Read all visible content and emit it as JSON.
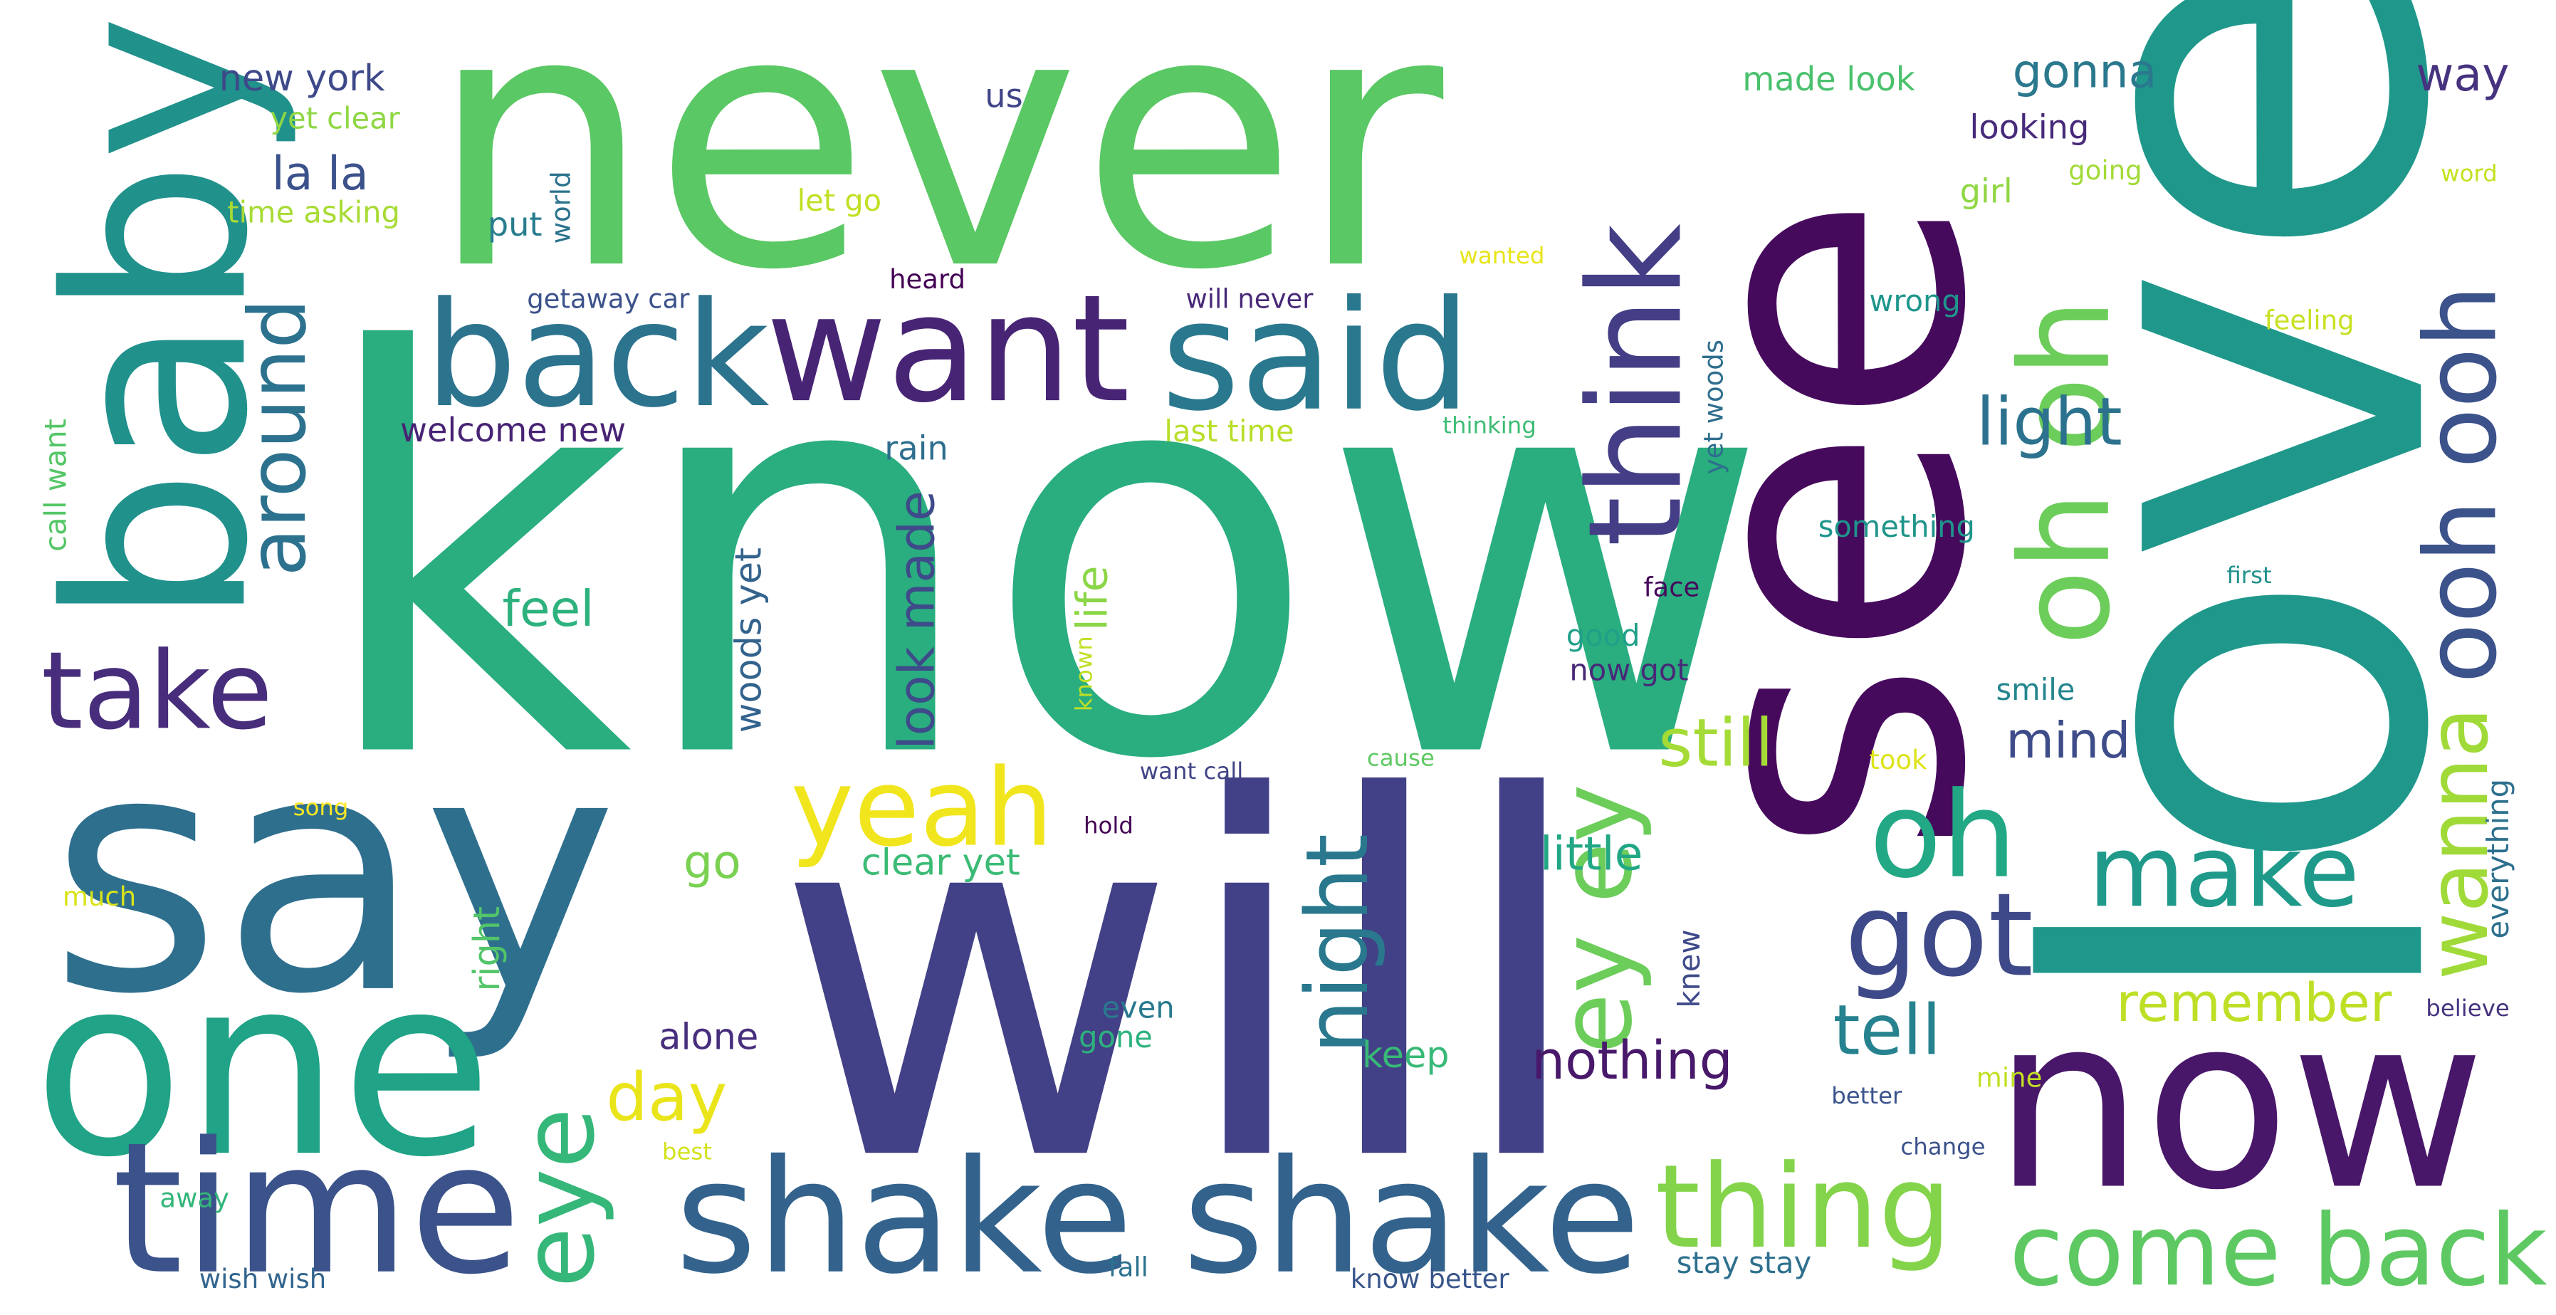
{
  "colormap": [
    "#440154",
    "#482878",
    "#3e4989",
    "#31688e",
    "#26828e",
    "#1f9e89",
    "#35b779",
    "#6ece58",
    "#b5de2b",
    "#fde725"
  ],
  "words": [
    {
      "text": "know",
      "color": "#2aae7f"
    },
    {
      "text": "will",
      "color": "#424086"
    },
    {
      "text": "love",
      "color": "#1f988b"
    },
    {
      "text": "never",
      "color": "#5ac864"
    },
    {
      "text": "see",
      "color": "#460a5d"
    },
    {
      "text": "say",
      "color": "#2e6f8e"
    },
    {
      "text": "now",
      "color": "#481769"
    },
    {
      "text": "baby",
      "color": "#21918c"
    },
    {
      "text": "one",
      "color": "#20a386"
    },
    {
      "text": "time",
      "color": "#3b528b"
    },
    {
      "text": "shake shake",
      "color": "#33638d"
    },
    {
      "text": "want",
      "color": "#482475"
    },
    {
      "text": "back",
      "color": "#2c738e"
    },
    {
      "text": "said",
      "color": "#2a788e"
    },
    {
      "text": "think",
      "color": "#433e85"
    },
    {
      "text": "oh oh",
      "color": "#6ccd5a"
    },
    {
      "text": "come back",
      "color": "#5ec962"
    },
    {
      "text": "ooh ooh",
      "color": "#3b528b"
    },
    {
      "text": "thing",
      "color": "#84d44b"
    },
    {
      "text": "eye",
      "color": "#35b779"
    },
    {
      "text": "ey ey",
      "color": "#6ccd5a"
    },
    {
      "text": "oh",
      "color": "#22a884"
    },
    {
      "text": "yeah",
      "color": "#f1e51d"
    },
    {
      "text": "got",
      "color": "#3e4989"
    },
    {
      "text": "make",
      "color": "#1f9a8a"
    },
    {
      "text": "night",
      "color": "#29788e"
    },
    {
      "text": "around",
      "color": "#2c728e"
    },
    {
      "text": "take",
      "color": "#472d7b"
    },
    {
      "text": "wanna",
      "color": "#a0da39"
    },
    {
      "text": "light",
      "color": "#2c728e"
    },
    {
      "text": "tell",
      "color": "#26828e"
    },
    {
      "text": "still",
      "color": "#a5db36"
    },
    {
      "text": "remember",
      "color": "#bddf26"
    },
    {
      "text": "day",
      "color": "#eae51a"
    },
    {
      "text": "nothing",
      "color": "#48186a"
    },
    {
      "text": "mind",
      "color": "#3e4c8a"
    },
    {
      "text": "little",
      "color": "#22a785"
    },
    {
      "text": "look made",
      "color": "#3e4a89"
    },
    {
      "text": "life",
      "color": "#8bd646"
    },
    {
      "text": "feel",
      "color": "#2db27d"
    },
    {
      "text": "gonna",
      "color": "#2a788e"
    },
    {
      "text": "way",
      "color": "#46327e"
    },
    {
      "text": "la la",
      "color": "#3b518b"
    },
    {
      "text": "go",
      "color": "#7ad151"
    },
    {
      "text": "woods yet",
      "color": "#33638d"
    },
    {
      "text": "clear yet",
      "color": "#3bbb75"
    },
    {
      "text": "keep",
      "color": "#38b977"
    },
    {
      "text": "right",
      "color": "#52c569"
    },
    {
      "text": "alone",
      "color": "#472f7d"
    },
    {
      "text": "welcome new",
      "color": "#482374"
    },
    {
      "text": "new york",
      "color": "#3e4989"
    },
    {
      "text": "made look",
      "color": "#4ac16d"
    },
    {
      "text": "looking",
      "color": "#472a7a"
    },
    {
      "text": "girl",
      "color": "#90d743"
    },
    {
      "text": "rain",
      "color": "#2e6e8e"
    },
    {
      "text": "last time",
      "color": "#b8de29"
    },
    {
      "text": "let go",
      "color": "#c2df23"
    },
    {
      "text": "yet clear",
      "color": "#8fd744"
    },
    {
      "text": "time asking",
      "color": "#a8db34"
    },
    {
      "text": "everything",
      "color": "#2d708e"
    },
    {
      "text": "us",
      "color": "#404588"
    },
    {
      "text": "put",
      "color": "#287d8e"
    },
    {
      "text": "world",
      "color": "#2c738e"
    },
    {
      "text": "getaway car",
      "color": "#3b528b"
    },
    {
      "text": "will never",
      "color": "#482878"
    },
    {
      "text": "heard",
      "color": "#440154"
    },
    {
      "text": "call want",
      "color": "#55c667"
    },
    {
      "text": "wrong",
      "color": "#1f968b"
    },
    {
      "text": "yet woods",
      "color": "#2e6e8e"
    },
    {
      "text": "something",
      "color": "#1f958b"
    },
    {
      "text": "good",
      "color": "#1fa088"
    },
    {
      "text": "now got",
      "color": "#482878"
    },
    {
      "text": "smile",
      "color": "#24868e"
    },
    {
      "text": "took",
      "color": "#dde318"
    },
    {
      "text": "knew",
      "color": "#3e4a89"
    },
    {
      "text": "face",
      "color": "#46085c"
    },
    {
      "text": "going",
      "color": "#a2da37"
    },
    {
      "text": "feeling",
      "color": "#c8e020"
    },
    {
      "text": "first",
      "color": "#21918c"
    },
    {
      "text": "word",
      "color": "#c5e021"
    },
    {
      "text": "wanted",
      "color": "#e7e419"
    },
    {
      "text": "thinking",
      "color": "#3dbc74"
    },
    {
      "text": "want call",
      "color": "#414487"
    },
    {
      "text": "cause",
      "color": "#5ec962"
    },
    {
      "text": "hold",
      "color": "#440154"
    },
    {
      "text": "known",
      "color": "#c0df25"
    },
    {
      "text": "song",
      "color": "#fde725"
    },
    {
      "text": "much",
      "color": "#dae319"
    },
    {
      "text": "even",
      "color": "#29798e"
    },
    {
      "text": "gone",
      "color": "#2db27d"
    },
    {
      "text": "best",
      "color": "#d2e21b"
    },
    {
      "text": "away",
      "color": "#34b679"
    },
    {
      "text": "wish wish",
      "color": "#32658e"
    },
    {
      "text": "fall",
      "color": "#2c718e"
    },
    {
      "text": "know better",
      "color": "#39568c"
    },
    {
      "text": "stay stay",
      "color": "#2d708e"
    },
    {
      "text": "better",
      "color": "#3a548c"
    },
    {
      "text": "mine",
      "color": "#c2df23"
    },
    {
      "text": "change",
      "color": "#3b528b"
    },
    {
      "text": "believe",
      "color": "#46337f"
    }
  ]
}
